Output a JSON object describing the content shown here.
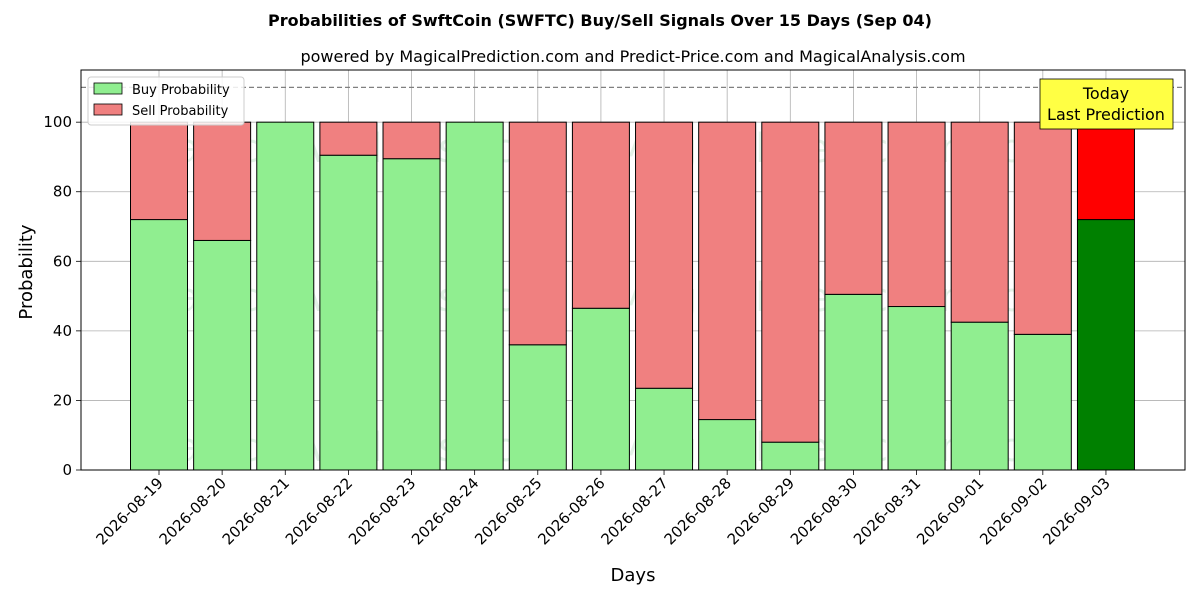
{
  "chart_data": {
    "type": "bar",
    "stacked": true,
    "title": "Probabilities of SwftCoin (SWFTC) Buy/Sell Signals Over 15 Days (Sep 04)",
    "subtitle": "powered by MagicalPrediction.com and Predict-Price.com and MagicalAnalysis.com",
    "xlabel": "Days",
    "ylabel": "Probability",
    "ylim": [
      0,
      115
    ],
    "yticks": [
      0,
      20,
      40,
      60,
      80,
      100
    ],
    "grid": true,
    "legend_position": "top-left",
    "reference_line": 110,
    "categories": [
      "2026-08-19",
      "2026-08-20",
      "2026-08-21",
      "2026-08-22",
      "2026-08-23",
      "2026-08-24",
      "2026-08-25",
      "2026-08-26",
      "2026-08-27",
      "2026-08-28",
      "2026-08-29",
      "2026-08-30",
      "2026-08-31",
      "2026-09-01",
      "2026-09-02",
      "2026-09-03"
    ],
    "series": [
      {
        "name": "Buy Probability",
        "values": [
          72,
          66,
          100,
          90.5,
          89.5,
          100,
          36,
          46.5,
          23.5,
          14.5,
          8,
          50.5,
          47,
          42.5,
          39,
          72
        ]
      },
      {
        "name": "Sell Probability",
        "values": [
          28,
          34,
          0,
          9.5,
          10.5,
          0,
          64,
          53.5,
          76.5,
          85.5,
          92,
          49.5,
          53,
          57.5,
          61,
          28
        ]
      }
    ],
    "colors": {
      "buy": "#90ee90",
      "sell": "#f08080",
      "buy_highlight": "#008000",
      "sell_highlight": "#ff0000",
      "annotation_bg": "#ffff44"
    },
    "highlight_index": 15,
    "annotation": {
      "line1": "Today",
      "line2": "Last Prediction"
    },
    "watermarks": [
      "MagicalAnalysis.com",
      "MagicalPrediction.com"
    ]
  }
}
